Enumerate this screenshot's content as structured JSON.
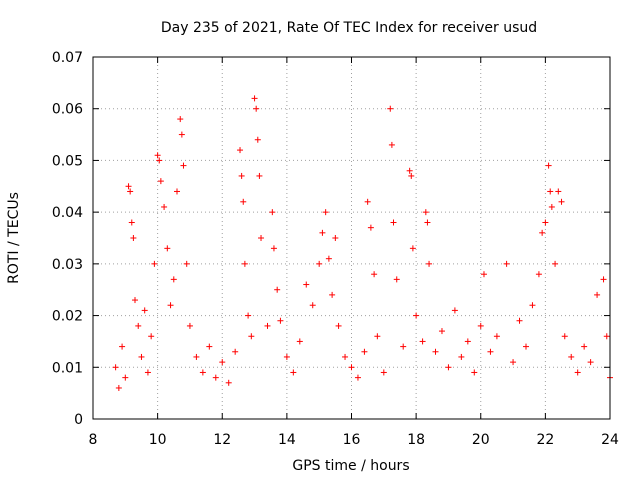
{
  "chart_data": {
    "type": "scatter",
    "title": "Day 235 of 2021, Rate Of TEC Index for receiver usud",
    "xlabel": "GPS time / hours",
    "ylabel": "ROTI / TECUs",
    "xlim": [
      8,
      24
    ],
    "ylim": [
      0,
      0.07
    ],
    "x_ticks": [
      8,
      10,
      12,
      14,
      16,
      18,
      20,
      22,
      24
    ],
    "y_ticks": [
      0,
      0.01,
      0.02,
      0.03,
      0.04,
      0.05,
      0.06,
      0.07
    ],
    "x_tick_labels": [
      "8",
      "10",
      "12",
      "14",
      "16",
      "18",
      "20",
      "22",
      "24"
    ],
    "y_tick_labels": [
      "0",
      "0.01",
      "0.02",
      "0.03",
      "0.04",
      "0.05",
      "0.06",
      "0.07"
    ],
    "grid": true,
    "marker": "plus",
    "marker_color": "#ff0000",
    "series": [
      {
        "points": [
          [
            8.7,
            0.01
          ],
          [
            8.8,
            0.006
          ],
          [
            8.9,
            0.014
          ],
          [
            9.0,
            0.008
          ],
          [
            9.1,
            0.045
          ],
          [
            9.15,
            0.044
          ],
          [
            9.2,
            0.038
          ],
          [
            9.25,
            0.035
          ],
          [
            9.3,
            0.023
          ],
          [
            9.4,
            0.018
          ],
          [
            9.5,
            0.012
          ],
          [
            9.6,
            0.021
          ],
          [
            9.7,
            0.009
          ],
          [
            9.8,
            0.016
          ],
          [
            9.9,
            0.03
          ],
          [
            10.0,
            0.051
          ],
          [
            10.05,
            0.05
          ],
          [
            10.1,
            0.046
          ],
          [
            10.2,
            0.041
          ],
          [
            10.3,
            0.033
          ],
          [
            10.4,
            0.022
          ],
          [
            10.5,
            0.027
          ],
          [
            10.6,
            0.044
          ],
          [
            10.7,
            0.058
          ],
          [
            10.75,
            0.055
          ],
          [
            10.8,
            0.049
          ],
          [
            10.9,
            0.03
          ],
          [
            11.0,
            0.018
          ],
          [
            11.2,
            0.012
          ],
          [
            11.4,
            0.009
          ],
          [
            11.6,
            0.014
          ],
          [
            11.8,
            0.008
          ],
          [
            12.0,
            0.011
          ],
          [
            12.2,
            0.007
          ],
          [
            12.4,
            0.013
          ],
          [
            12.55,
            0.052
          ],
          [
            12.6,
            0.047
          ],
          [
            12.65,
            0.042
          ],
          [
            12.7,
            0.03
          ],
          [
            12.8,
            0.02
          ],
          [
            12.9,
            0.016
          ],
          [
            13.0,
            0.062
          ],
          [
            13.05,
            0.06
          ],
          [
            13.1,
            0.054
          ],
          [
            13.15,
            0.047
          ],
          [
            13.2,
            0.035
          ],
          [
            13.4,
            0.018
          ],
          [
            13.55,
            0.04
          ],
          [
            13.6,
            0.033
          ],
          [
            13.7,
            0.025
          ],
          [
            13.8,
            0.019
          ],
          [
            14.0,
            0.012
          ],
          [
            14.2,
            0.009
          ],
          [
            14.4,
            0.015
          ],
          [
            14.6,
            0.026
          ],
          [
            14.8,
            0.022
          ],
          [
            15.0,
            0.03
          ],
          [
            15.1,
            0.036
          ],
          [
            15.2,
            0.04
          ],
          [
            15.3,
            0.031
          ],
          [
            15.4,
            0.024
          ],
          [
            15.5,
            0.035
          ],
          [
            15.6,
            0.018
          ],
          [
            15.8,
            0.012
          ],
          [
            16.0,
            0.01
          ],
          [
            16.2,
            0.008
          ],
          [
            16.4,
            0.013
          ],
          [
            16.5,
            0.042
          ],
          [
            16.6,
            0.037
          ],
          [
            16.7,
            0.028
          ],
          [
            16.8,
            0.016
          ],
          [
            17.0,
            0.009
          ],
          [
            17.2,
            0.06
          ],
          [
            17.25,
            0.053
          ],
          [
            17.3,
            0.038
          ],
          [
            17.4,
            0.027
          ],
          [
            17.6,
            0.014
          ],
          [
            17.8,
            0.048
          ],
          [
            17.85,
            0.047
          ],
          [
            17.9,
            0.033
          ],
          [
            18.0,
            0.02
          ],
          [
            18.2,
            0.015
          ],
          [
            18.3,
            0.04
          ],
          [
            18.35,
            0.038
          ],
          [
            18.4,
            0.03
          ],
          [
            18.6,
            0.013
          ],
          [
            18.8,
            0.017
          ],
          [
            19.0,
            0.01
          ],
          [
            19.2,
            0.021
          ],
          [
            19.4,
            0.012
          ],
          [
            19.6,
            0.015
          ],
          [
            19.8,
            0.009
          ],
          [
            20.0,
            0.018
          ],
          [
            20.1,
            0.028
          ],
          [
            20.3,
            0.013
          ],
          [
            20.5,
            0.016
          ],
          [
            20.8,
            0.03
          ],
          [
            21.0,
            0.011
          ],
          [
            21.2,
            0.019
          ],
          [
            21.4,
            0.014
          ],
          [
            21.6,
            0.022
          ],
          [
            21.8,
            0.028
          ],
          [
            21.9,
            0.036
          ],
          [
            22.0,
            0.038
          ],
          [
            22.1,
            0.049
          ],
          [
            22.15,
            0.044
          ],
          [
            22.2,
            0.041
          ],
          [
            22.3,
            0.03
          ],
          [
            22.4,
            0.044
          ],
          [
            22.5,
            0.042
          ],
          [
            22.6,
            0.016
          ],
          [
            22.8,
            0.012
          ],
          [
            23.0,
            0.009
          ],
          [
            23.2,
            0.014
          ],
          [
            23.4,
            0.011
          ],
          [
            23.6,
            0.024
          ],
          [
            23.8,
            0.027
          ],
          [
            23.9,
            0.016
          ],
          [
            24.0,
            0.008
          ]
        ]
      }
    ]
  }
}
